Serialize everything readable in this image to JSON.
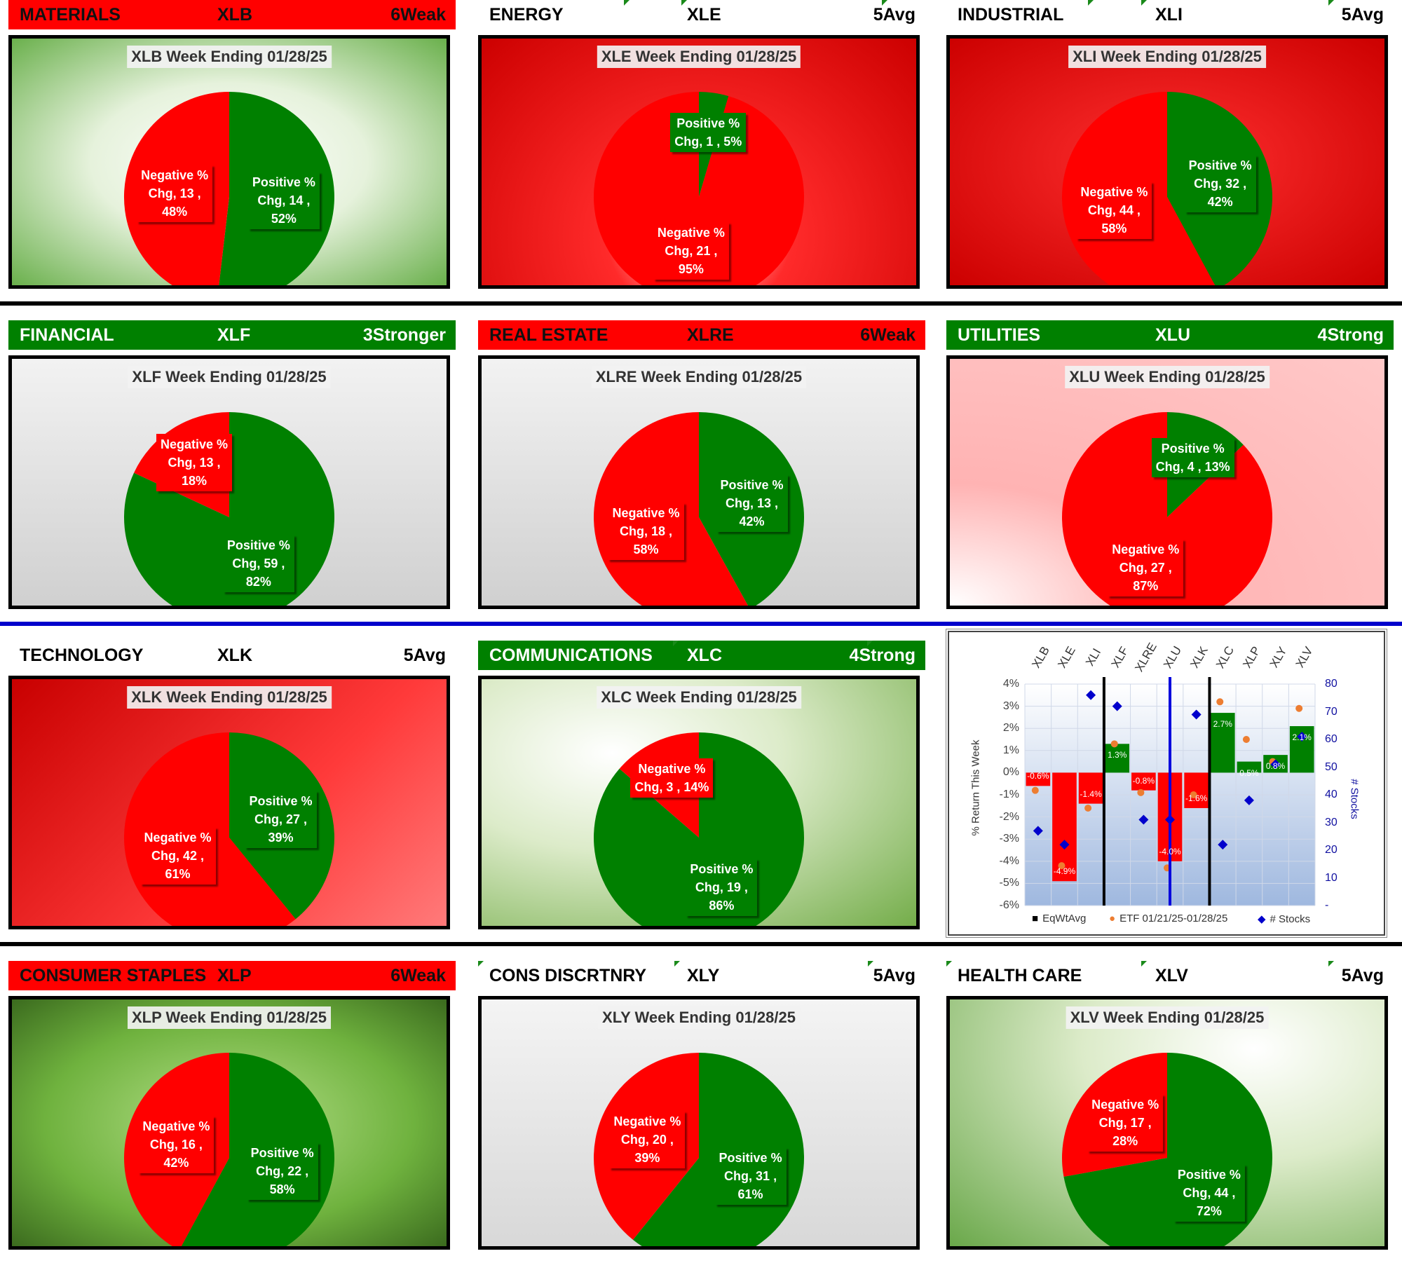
{
  "colors": {
    "positive": "#008000",
    "negative": "#ff0000",
    "header_red": "#ff0000",
    "header_green": "#008000",
    "avg_line": "#0000dd"
  },
  "chart_data": [
    {
      "type": "pie",
      "sector": "MATERIALS",
      "etf": "XLB",
      "rating": "6Weak",
      "header_style": "red",
      "title": "XLB Week Ending 01/28/25",
      "slices": [
        {
          "name": "Positive % Chg",
          "count": 14,
          "pct": 52,
          "line1": "Positive %",
          "line2": "Chg,  14 ,",
          "line3": "52%"
        },
        {
          "name": "Negative % Chg",
          "count": 13,
          "pct": 48,
          "line1": "Negative %",
          "line2": "Chg,  13 ,",
          "line3": "48%"
        }
      ]
    },
    {
      "type": "pie",
      "sector": "ENERGY",
      "etf": "XLE",
      "rating": "5Avg",
      "header_style": "white",
      "title": "XLE Week Ending 01/28/25",
      "slices": [
        {
          "name": "Positive % Chg",
          "count": 1,
          "pct": 5,
          "line1": "Positive %",
          "line2": "Chg,  1 , 5%",
          "line3": ""
        },
        {
          "name": "Negative % Chg",
          "count": 21,
          "pct": 95,
          "line1": "Negative %",
          "line2": "Chg,  21 ,",
          "line3": "95%"
        }
      ]
    },
    {
      "type": "pie",
      "sector": "INDUSTRIAL",
      "etf": "XLI",
      "rating": "5Avg",
      "header_style": "white",
      "title": "XLI Week Ending 01/28/25",
      "slices": [
        {
          "name": "Positive % Chg",
          "count": 32,
          "pct": 42,
          "line1": "Positive %",
          "line2": "Chg,  32 ,",
          "line3": "42%"
        },
        {
          "name": "Negative % Chg",
          "count": 44,
          "pct": 58,
          "line1": "Negative %",
          "line2": "Chg,  44 ,",
          "line3": "58%"
        }
      ]
    },
    {
      "type": "pie",
      "sector": "FINANCIAL",
      "etf": "XLF",
      "rating": "3Stronger",
      "header_style": "green",
      "title": "XLF Week Ending 01/28/25",
      "slices": [
        {
          "name": "Positive % Chg",
          "count": 59,
          "pct": 82,
          "line1": "Positive %",
          "line2": "Chg,  59 ,",
          "line3": "82%"
        },
        {
          "name": "Negative % Chg",
          "count": 13,
          "pct": 18,
          "line1": "Negative %",
          "line2": "Chg,  13 ,",
          "line3": "18%"
        }
      ]
    },
    {
      "type": "pie",
      "sector": "REAL ESTATE",
      "etf": "XLRE",
      "rating": "6Weak",
      "header_style": "red",
      "title": "XLRE Week Ending 01/28/25",
      "slices": [
        {
          "name": "Positive % Chg",
          "count": 13,
          "pct": 42,
          "line1": "Positive %",
          "line2": "Chg,  13 ,",
          "line3": "42%"
        },
        {
          "name": "Negative % Chg",
          "count": 18,
          "pct": 58,
          "line1": "Negative %",
          "line2": "Chg,  18 ,",
          "line3": "58%"
        }
      ]
    },
    {
      "type": "pie",
      "sector": "UTILITIES",
      "etf": "XLU",
      "rating": "4Strong",
      "header_style": "green",
      "title": "XLU Week Ending 01/28/25",
      "slices": [
        {
          "name": "Positive % Chg",
          "count": 4,
          "pct": 13,
          "line1": "Positive %",
          "line2": "Chg,  4 , 13%",
          "line3": ""
        },
        {
          "name": "Negative % Chg",
          "count": 27,
          "pct": 87,
          "line1": "Negative %",
          "line2": "Chg,  27 ,",
          "line3": "87%"
        }
      ]
    },
    {
      "type": "pie",
      "sector": "TECHNOLOGY",
      "etf": "XLK",
      "rating": "5Avg",
      "header_style": "white",
      "title": "XLK Week Ending 01/28/25",
      "slices": [
        {
          "name": "Positive % Chg",
          "count": 27,
          "pct": 39,
          "line1": "Positive %",
          "line2": "Chg,  27 ,",
          "line3": "39%"
        },
        {
          "name": "Negative % Chg",
          "count": 42,
          "pct": 61,
          "line1": "Negative %",
          "line2": "Chg,  42 ,",
          "line3": "61%"
        }
      ]
    },
    {
      "type": "pie",
      "sector": "COMMUNICATIONS",
      "etf": "XLC",
      "rating": "4Strong",
      "header_style": "green",
      "title": "XLC Week Ending 01/28/25",
      "slices": [
        {
          "name": "Positive % Chg",
          "count": 19,
          "pct": 86,
          "line1": "Positive %",
          "line2": "Chg,  19 ,",
          "line3": "86%"
        },
        {
          "name": "Negative % Chg",
          "count": 3,
          "pct": 14,
          "line1": "Negative %",
          "line2": "Chg,  3 , 14%",
          "line3": ""
        }
      ]
    },
    {
      "type": "pie",
      "sector": "CONSUMER STAPLES",
      "etf": "XLP",
      "rating": "6Weak",
      "header_style": "red",
      "title": "XLP Week Ending 01/28/25",
      "slices": [
        {
          "name": "Positive % Chg",
          "count": 22,
          "pct": 58,
          "line1": "Positive %",
          "line2": "Chg,  22 ,",
          "line3": "58%"
        },
        {
          "name": "Negative % Chg",
          "count": 16,
          "pct": 42,
          "line1": "Negative %",
          "line2": "Chg,  16 ,",
          "line3": "42%"
        }
      ]
    },
    {
      "type": "pie",
      "sector": "CONS DISCRTNRY",
      "etf": "XLY",
      "rating": "5Avg",
      "header_style": "white",
      "title": "XLY Week Ending 01/28/25",
      "slices": [
        {
          "name": "Positive % Chg",
          "count": 31,
          "pct": 61,
          "line1": "Positive %",
          "line2": "Chg,  31 ,",
          "line3": "61%"
        },
        {
          "name": "Negative % Chg",
          "count": 20,
          "pct": 39,
          "line1": "Negative %",
          "line2": "Chg,  20 ,",
          "line3": "39%"
        }
      ]
    },
    {
      "type": "pie",
      "sector": "HEALTH CARE",
      "etf": "XLV",
      "rating": "5Avg",
      "header_style": "white",
      "title": "XLV Week Ending 01/28/25",
      "slices": [
        {
          "name": "Positive % Chg",
          "count": 44,
          "pct": 72,
          "line1": "Positive %",
          "line2": "Chg,  44 ,",
          "line3": "72%"
        },
        {
          "name": "Negative % Chg",
          "count": 17,
          "pct": 28,
          "line1": "Negative %",
          "line2": "Chg,  17 ,",
          "line3": "28%"
        }
      ]
    },
    {
      "type": "bar",
      "categories": [
        "XLB",
        "XLE",
        "XLI",
        "XLF",
        "XLRE",
        "XLU",
        "XLK",
        "XLC",
        "XLP",
        "XLY",
        "XLV"
      ],
      "series": [
        {
          "name": "EqWtAvg",
          "type": "bar",
          "axis": "left",
          "values": [
            -0.6,
            -4.9,
            -1.4,
            1.3,
            -0.8,
            -4.0,
            -1.6,
            2.7,
            0.5,
            0.8,
            2.1
          ],
          "labels": [
            "-0.6%",
            "-4.9%",
            "-1.4%",
            "1.3%",
            "-0.8%",
            "-4.0%",
            "-1.6%",
            "2.7%",
            "0.5%",
            "0.8%",
            "2.1%"
          ]
        },
        {
          "name": "ETF 01/21/25-01/28/25",
          "type": "scatter",
          "axis": "left",
          "values": [
            -0.8,
            -4.2,
            -1.6,
            1.3,
            -0.9,
            -4.3,
            -1.0,
            3.2,
            1.5,
            0.5,
            2.9
          ]
        },
        {
          "name": "# Stocks",
          "type": "scatter",
          "axis": "right",
          "values": [
            27,
            22,
            76,
            72,
            31,
            31,
            69,
            22,
            38,
            51,
            61
          ]
        }
      ],
      "ylabel": "% Return This Week",
      "y2label": "# Stocks",
      "ylim": [
        -6,
        4
      ],
      "y2lim": [
        0,
        80
      ],
      "y_ticks": [
        "4%",
        "3%",
        "2%",
        "1%",
        "0%",
        "-1%",
        "-2%",
        "-3%",
        "-4%",
        "-5%",
        "-6%"
      ],
      "y2_ticks": [
        "80",
        "70",
        "60",
        "50",
        "40",
        "30",
        "20",
        "10",
        "-"
      ],
      "dividers_after": [
        "XLI",
        "XLK"
      ],
      "blue_line_at": "XLU",
      "legend": [
        "EqWtAvg",
        "ETF 01/21/25-01/28/25",
        "# Stocks"
      ]
    }
  ]
}
